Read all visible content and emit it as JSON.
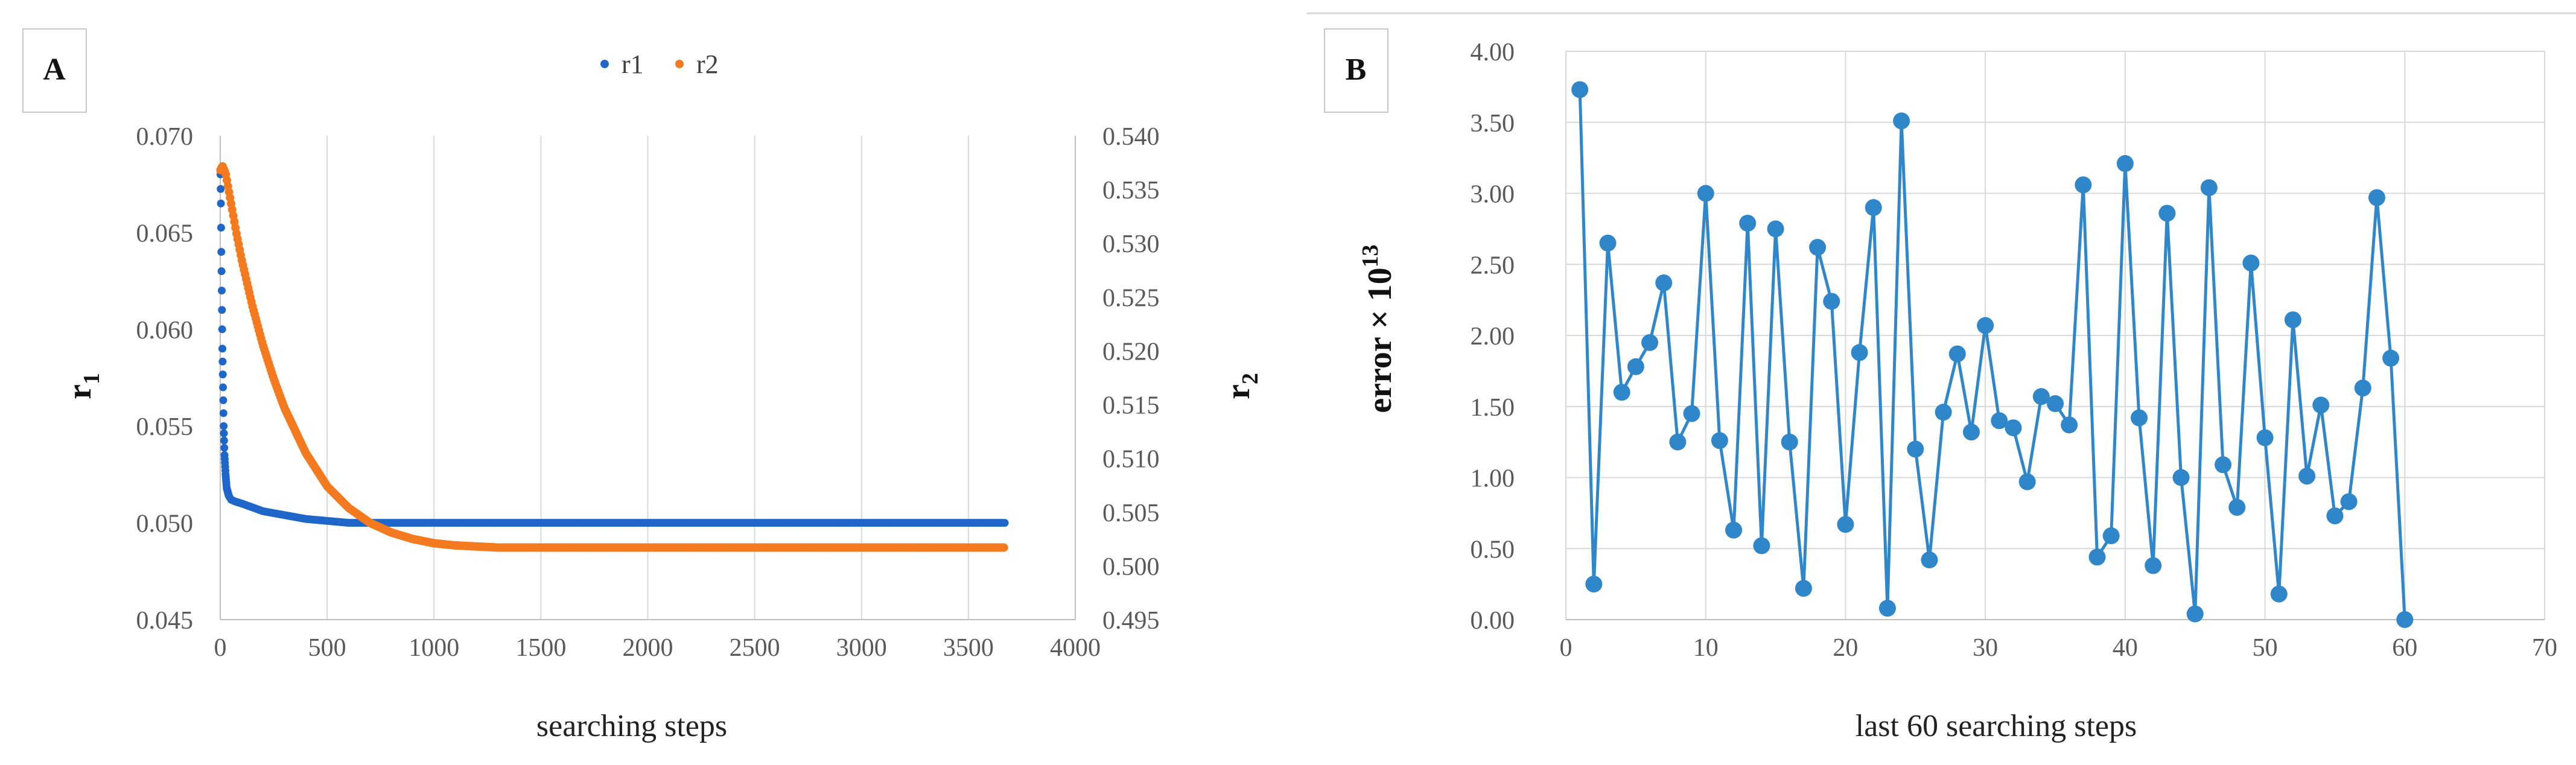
{
  "chart_data": [
    {
      "panel_label": "A",
      "type": "scatter",
      "xlabel": "searching steps",
      "ylabel_left": "r",
      "ylabel_left_sub": "1",
      "ylabel_right": "r",
      "ylabel_right_sub": "2",
      "xlim": [
        0,
        4000
      ],
      "xticks": [
        "0",
        "500",
        "1000",
        "1500",
        "2000",
        "2500",
        "3000",
        "3500",
        "4000"
      ],
      "ylim_left": [
        0.045,
        0.07
      ],
      "yticks_left": [
        "0.045",
        "0.050",
        "0.055",
        "0.060",
        "0.065",
        "0.070"
      ],
      "ylim_right": [
        0.495,
        0.54
      ],
      "yticks_right": [
        "0.495",
        "0.500",
        "0.505",
        "0.510",
        "0.515",
        "0.520",
        "0.525",
        "0.530",
        "0.535",
        "0.540"
      ],
      "grid": "vertical",
      "legend_position": "top-center",
      "series": [
        {
          "name": "r1",
          "axis": "left",
          "color": "#1f66c9",
          "x": [
            1,
            3,
            5,
            8,
            10,
            13,
            16,
            20,
            25,
            30,
            40,
            50,
            70,
            100,
            150,
            200,
            300,
            400,
            500,
            600,
            700,
            800,
            1000,
            1200,
            1500,
            2000,
            2500,
            3000,
            3500,
            3670
          ],
          "y": [
            0.068,
            0.0665,
            0.064,
            0.061,
            0.059,
            0.057,
            0.055,
            0.0535,
            0.0525,
            0.0518,
            0.0514,
            0.0512,
            0.0511,
            0.051,
            0.0508,
            0.0506,
            0.0504,
            0.0502,
            0.0501,
            0.05,
            0.05,
            0.05,
            0.05,
            0.05,
            0.05,
            0.05,
            0.05,
            0.05,
            0.05,
            0.05
          ]
        },
        {
          "name": "r2",
          "axis": "right",
          "color": "#f47a20",
          "x": [
            1,
            10,
            25,
            50,
            75,
            100,
            150,
            200,
            250,
            300,
            400,
            500,
            600,
            700,
            800,
            900,
            1000,
            1100,
            1200,
            1300,
            1500,
            2000,
            2500,
            3000,
            3500,
            3670
          ],
          "y": [
            0.5368,
            0.5372,
            0.5365,
            0.5338,
            0.531,
            0.5285,
            0.5242,
            0.5205,
            0.5174,
            0.5147,
            0.5105,
            0.5074,
            0.5054,
            0.504,
            0.5031,
            0.5025,
            0.5021,
            0.5019,
            0.5018,
            0.5017,
            0.5017,
            0.5017,
            0.5017,
            0.5017,
            0.5017,
            0.5017
          ]
        }
      ]
    },
    {
      "panel_label": "B",
      "type": "line",
      "xlabel": "last 60 searching steps",
      "ylabel": "error  × 10",
      "ylabel_sup": "13",
      "xlim": [
        0,
        70
      ],
      "xticks": [
        "0",
        "10",
        "20",
        "30",
        "40",
        "50",
        "60",
        "70"
      ],
      "ylim": [
        0,
        4
      ],
      "yticks": [
        "0.00",
        "0.50",
        "1.00",
        "1.50",
        "2.00",
        "2.50",
        "3.00",
        "3.50",
        "4.00"
      ],
      "grid": "both",
      "series": [
        {
          "color": "#2f86c9",
          "x": [
            1,
            2,
            3,
            4,
            5,
            6,
            7,
            8,
            9,
            10,
            11,
            12,
            13,
            14,
            15,
            16,
            17,
            18,
            19,
            20,
            21,
            22,
            23,
            24,
            25,
            26,
            27,
            28,
            29,
            30,
            31,
            32,
            33,
            34,
            35,
            36,
            37,
            38,
            39,
            40,
            41,
            42,
            43,
            44,
            45,
            46,
            47,
            48,
            49,
            50,
            51,
            52,
            53,
            54,
            55,
            56,
            57,
            58,
            59,
            60
          ],
          "y": [
            3.73,
            0.25,
            2.65,
            1.6,
            1.78,
            1.95,
            2.37,
            1.25,
            1.45,
            3.0,
            1.26,
            0.63,
            2.79,
            0.52,
            2.75,
            1.25,
            0.22,
            2.62,
            2.24,
            0.67,
            1.88,
            2.9,
            0.08,
            3.51,
            1.2,
            0.42,
            1.46,
            1.87,
            1.32,
            2.07,
            1.4,
            1.35,
            0.97,
            1.57,
            1.52,
            1.37,
            3.06,
            0.44,
            0.59,
            3.21,
            1.42,
            0.38,
            2.86,
            1.0,
            0.04,
            3.04,
            1.09,
            0.79,
            2.51,
            1.28,
            0.18,
            2.11,
            1.01,
            1.51,
            0.73,
            0.83,
            1.63,
            2.97,
            1.84,
            0.0
          ]
        }
      ]
    }
  ]
}
